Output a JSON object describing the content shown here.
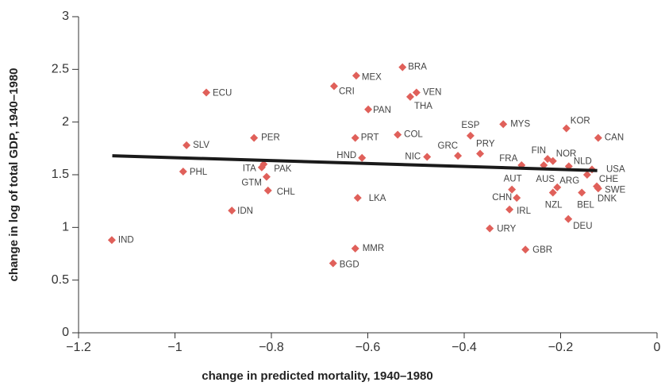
{
  "chart_data": {
    "type": "scatter",
    "xlabel": "change in predicted mortality, 1940–1980",
    "ylabel": "change in log of total GDP, 1940–1980",
    "color": "#e0605a",
    "labels": [
      "IND",
      "PHL",
      "SLV",
      "ECU",
      "PER",
      "IDN",
      "ITA",
      "PAK",
      "GTM",
      "CHL",
      "CRI",
      "MEX",
      "BRA",
      "VEN",
      "THA",
      "PAN",
      "PRT",
      "COL",
      "HND",
      "NIC",
      "LKA",
      "MMR",
      "BGD",
      "GRC",
      "ESP",
      "PRY",
      "MYS",
      "FRA",
      "AUT",
      "CHN",
      "IRL",
      "URY",
      "GBR",
      "FIN",
      "NOR",
      "AUS",
      "ARG",
      "NZL",
      "KOR",
      "NLD",
      "CAN",
      "USA",
      "CHE",
      "SWE",
      "DNK",
      "BEL",
      "DEU"
    ],
    "x": [
      -1.131,
      -0.983,
      -0.976,
      -0.935,
      -0.836,
      -0.882,
      -0.82,
      -0.816,
      -0.81,
      -0.807,
      -0.67,
      -0.624,
      -0.528,
      -0.499,
      -0.512,
      -0.599,
      -0.626,
      -0.538,
      -0.612,
      -0.477,
      -0.621,
      -0.626,
      -0.672,
      -0.413,
      -0.387,
      -0.367,
      -0.319,
      -0.281,
      -0.301,
      -0.291,
      -0.306,
      -0.347,
      -0.273,
      -0.227,
      -0.216,
      -0.235,
      -0.207,
      -0.216,
      -0.188,
      -0.183,
      -0.122,
      -0.135,
      -0.145,
      -0.125,
      -0.122,
      -0.156,
      -0.184
    ],
    "y": [
      0.88,
      1.53,
      1.78,
      2.28,
      1.85,
      1.16,
      1.57,
      1.6,
      1.48,
      1.35,
      2.34,
      2.44,
      2.52,
      2.28,
      2.24,
      2.12,
      1.85,
      1.88,
      1.66,
      1.67,
      1.28,
      0.8,
      0.66,
      1.68,
      1.87,
      1.7,
      1.98,
      1.59,
      1.36,
      1.28,
      1.17,
      0.99,
      0.79,
      1.65,
      1.63,
      1.59,
      1.38,
      1.33,
      1.94,
      1.58,
      1.85,
      1.55,
      1.5,
      1.39,
      1.37,
      1.33,
      1.08
    ],
    "fit_line": {
      "x": [
        -1.13,
        -0.124
      ],
      "y": [
        1.68,
        1.54
      ],
      "color": "#1a1a1a"
    },
    "xlim": [
      -1.2,
      0
    ],
    "xticks": [
      {
        "value": -1.2,
        "label": "−1.2"
      },
      {
        "value": -1,
        "label": "−1"
      },
      {
        "value": -0.8,
        "label": "−0.8"
      },
      {
        "value": -0.6,
        "label": "−0.6"
      },
      {
        "value": -0.4,
        "label": "−0.4"
      },
      {
        "value": -0.2,
        "label": "−0.2"
      },
      0
    ],
    "ylim": [
      0,
      3
    ],
    "yticks": [
      0,
      0.5,
      1,
      1.5,
      2,
      2.5,
      3
    ],
    "grid": false
  }
}
